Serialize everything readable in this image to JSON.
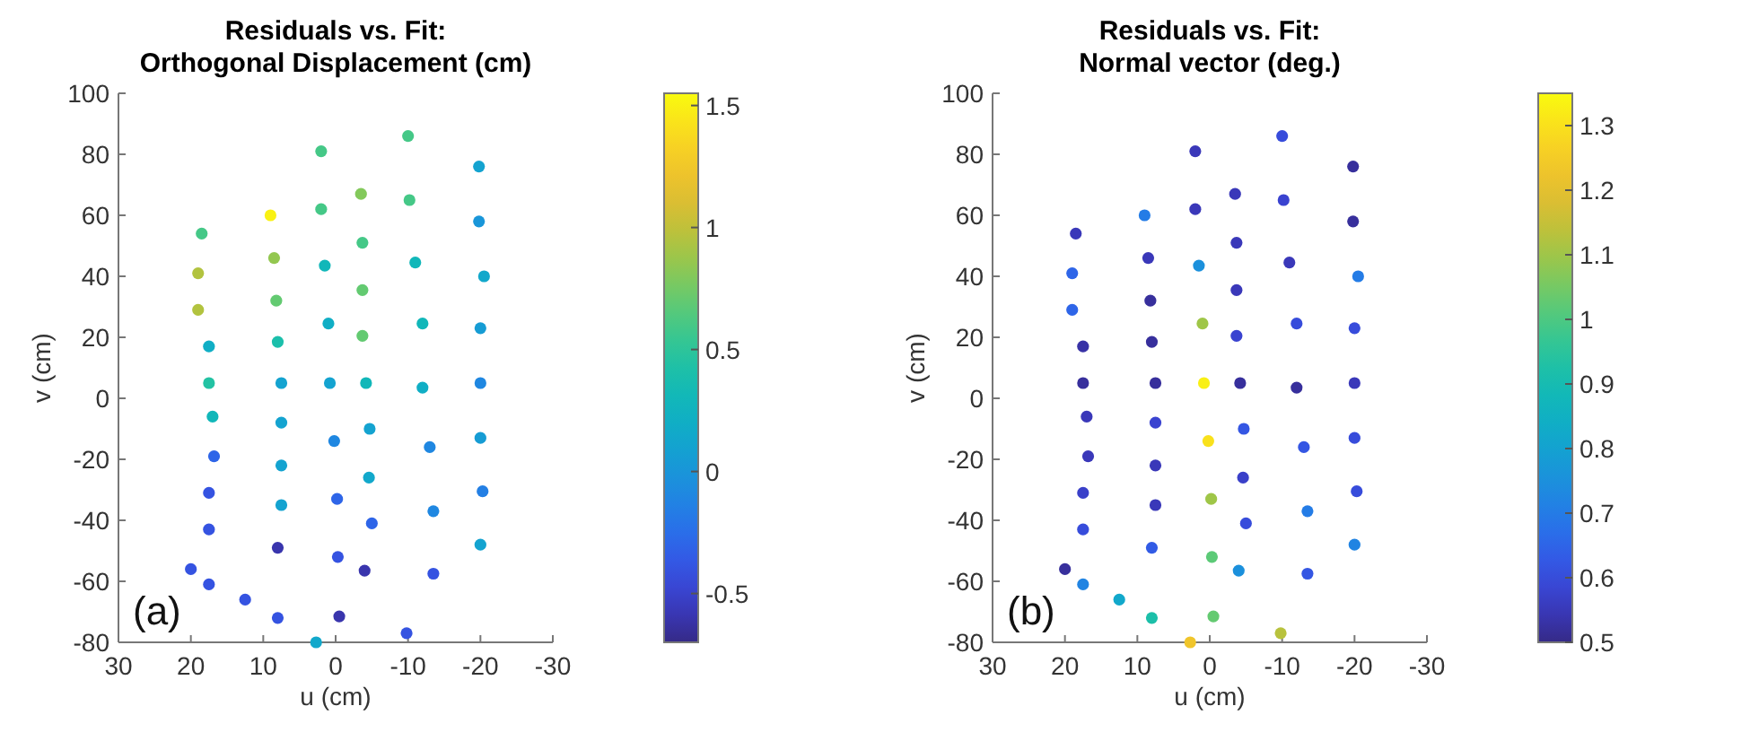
{
  "chart_data": [
    {
      "type": "scatter",
      "title": "Residuals vs. Fit:\nOrthogonal Displacement (cm)",
      "xlabel": "u (cm)",
      "ylabel": "v (cm)",
      "annotations": [
        "(a)"
      ],
      "marker": "circle",
      "xlim": [
        30,
        -30
      ],
      "xticks": [
        30,
        20,
        10,
        0,
        -10,
        -20,
        -30
      ],
      "ylim": [
        -80,
        100
      ],
      "yticks": [
        -80,
        -60,
        -40,
        -20,
        0,
        20,
        40,
        60,
        80,
        100
      ],
      "clim": [
        -0.7,
        1.55
      ],
      "cticks": [
        -0.5,
        0,
        0.5,
        1,
        1.5
      ],
      "x": [
        18.5,
        19,
        19,
        17.5,
        17.5,
        17,
        16.8,
        17.5,
        17.5,
        20,
        17.5,
        12.5,
        9,
        8.5,
        8.2,
        8,
        7.5,
        7.5,
        7.5,
        7.5,
        8,
        8,
        2,
        2,
        1.5,
        1,
        0.8,
        0.2,
        -0.2,
        -0.3,
        -0.5,
        2.7,
        -3.5,
        -3.7,
        -3.7,
        -3.7,
        -4.2,
        -4.7,
        -4.6,
        -5,
        -4,
        -10,
        -10.2,
        -11,
        -12,
        -12,
        -13,
        -13.5,
        -13.5,
        -9.8,
        -19.8,
        -19.8,
        -20.5,
        -20,
        -20,
        -20,
        -20.3,
        -20
      ],
      "values": [
        54,
        41,
        29,
        17,
        5,
        -6,
        -19,
        -31,
        -43,
        -56,
        -61,
        -66,
        60,
        46,
        32,
        18.5,
        5,
        -8,
        -22,
        -35,
        -49,
        -72,
        81,
        62,
        43.5,
        24.5,
        5,
        -14,
        -33,
        -52,
        -71.5,
        -80,
        67,
        51,
        35.5,
        20.5,
        5,
        -10,
        -26,
        -41,
        -56.5,
        86,
        65,
        44.5,
        24.5,
        3.5,
        -16,
        -37,
        -57.5,
        -77,
        76,
        58,
        40,
        23,
        5,
        -13,
        -30.5,
        -48
      ],
      "cvalues": [
        0.6,
        0.95,
        0.95,
        0.2,
        0.45,
        0.3,
        -0.3,
        -0.4,
        -0.4,
        -0.4,
        -0.4,
        -0.4,
        1.5,
        0.85,
        0.7,
        0.4,
        0.1,
        0.1,
        0.1,
        0.1,
        -0.6,
        -0.4,
        0.6,
        0.6,
        0.3,
        0.2,
        0.1,
        -0.1,
        -0.3,
        -0.4,
        -0.6,
        0.15,
        0.8,
        0.6,
        0.7,
        0.7,
        0.3,
        0.1,
        0.15,
        -0.3,
        -0.6,
        0.6,
        0.6,
        0.3,
        0.3,
        0.2,
        -0.1,
        -0.1,
        -0.4,
        -0.4,
        0.1,
        0,
        0.15,
        0.05,
        -0.1,
        0.05,
        -0.15,
        0.1
      ]
    },
    {
      "type": "scatter",
      "title": "Residuals vs. Fit:\nNormal vector (deg.)",
      "xlabel": "u (cm)",
      "ylabel": "v (cm)",
      "annotations": [
        "(b)"
      ],
      "marker": "circle",
      "xlim": [
        30,
        -30
      ],
      "xticks": [
        30,
        20,
        10,
        0,
        -10,
        -20,
        -30
      ],
      "ylim": [
        -80,
        100
      ],
      "yticks": [
        -80,
        -60,
        -40,
        -20,
        0,
        20,
        40,
        60,
        80,
        100
      ],
      "clim": [
        0.5,
        1.35
      ],
      "cticks": [
        0.5,
        0.6,
        0.7,
        0.8,
        0.9,
        1,
        1.1,
        1.2,
        1.3
      ],
      "x": [
        18.5,
        19,
        19,
        17.5,
        17.5,
        17,
        16.8,
        17.5,
        17.5,
        20,
        17.5,
        12.5,
        9,
        8.5,
        8.2,
        8,
        7.5,
        7.5,
        7.5,
        7.5,
        8,
        8,
        2,
        2,
        1.5,
        1,
        0.8,
        0.2,
        -0.2,
        -0.3,
        -0.5,
        2.7,
        -3.5,
        -3.7,
        -3.7,
        -3.7,
        -4.2,
        -4.7,
        -4.6,
        -5,
        -4,
        -10,
        -10.2,
        -11,
        -12,
        -12,
        -13,
        -13.5,
        -13.5,
        -9.8,
        -19.8,
        -19.8,
        -20.5,
        -20,
        -20,
        -20,
        -20.3,
        -20
      ],
      "values": [
        54,
        41,
        29,
        17,
        5,
        -6,
        -19,
        -31,
        -43,
        -56,
        -61,
        -66,
        60,
        46,
        32,
        18.5,
        5,
        -8,
        -22,
        -35,
        -49,
        -72,
        81,
        62,
        43.5,
        24.5,
        5,
        -14,
        -33,
        -52,
        -71.5,
        -80,
        67,
        51,
        35.5,
        20.5,
        5,
        -10,
        -26,
        -41,
        -56.5,
        86,
        65,
        44.5,
        24.5,
        3.5,
        -16,
        -37,
        -57.5,
        -77,
        76,
        58,
        40,
        23,
        5,
        -13,
        -30.5,
        -48
      ],
      "cvalues": [
        0.55,
        0.65,
        0.65,
        0.53,
        0.52,
        0.55,
        0.55,
        0.57,
        0.6,
        0.52,
        0.72,
        0.82,
        0.7,
        0.55,
        0.52,
        0.52,
        0.52,
        0.58,
        0.55,
        0.55,
        0.63,
        0.92,
        0.55,
        0.55,
        0.75,
        1.1,
        1.33,
        1.3,
        1.1,
        1.02,
        1.03,
        1.23,
        0.55,
        0.55,
        0.55,
        0.58,
        0.52,
        0.62,
        0.57,
        0.6,
        0.75,
        0.6,
        0.58,
        0.55,
        0.6,
        0.52,
        0.62,
        0.7,
        0.62,
        1.13,
        0.52,
        0.52,
        0.7,
        0.6,
        0.55,
        0.6,
        0.6,
        0.72
      ]
    }
  ]
}
